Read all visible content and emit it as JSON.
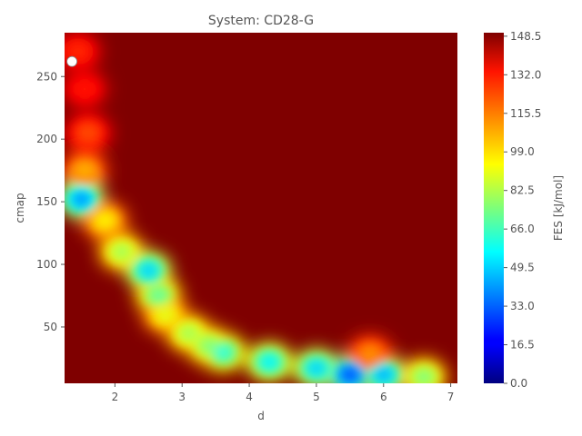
{
  "chart_data": {
    "type": "heatmap",
    "title": "System: CD28-G",
    "xlabel": "d",
    "ylabel": "cmap",
    "colorbar_label": "FES [kJ/mol]",
    "x_ticks": [
      "2",
      "3",
      "4",
      "5",
      "6",
      "7"
    ],
    "x_tick_values": [
      2,
      3,
      4,
      5,
      6,
      7
    ],
    "y_ticks": [
      "50",
      "100",
      "150",
      "200",
      "250"
    ],
    "y_tick_values": [
      50,
      100,
      150,
      200,
      250
    ],
    "colorbar_ticks": [
      "0.0",
      "16.5",
      "33.0",
      "49.5",
      "66.0",
      "82.5",
      "99.0",
      "115.5",
      "132.0",
      "148.5"
    ],
    "colorbar_tick_values": [
      0.0,
      16.5,
      33.0,
      49.5,
      66.0,
      82.5,
      99.0,
      115.5,
      132.0,
      148.5
    ],
    "xlim": [
      1.25,
      7.1
    ],
    "ylim": [
      5,
      285
    ],
    "zlim": [
      0,
      150
    ],
    "colormap": "jet",
    "background_level": 150,
    "marker": {
      "x": 1.36,
      "y": 262
    },
    "fes_path": [
      {
        "x": 1.45,
        "y": 270,
        "value": 125
      },
      {
        "x": 1.55,
        "y": 240,
        "value": 128
      },
      {
        "x": 1.6,
        "y": 205,
        "value": 120
      },
      {
        "x": 1.55,
        "y": 175,
        "value": 105
      },
      {
        "x": 1.5,
        "y": 152,
        "value": 40
      },
      {
        "x": 1.85,
        "y": 135,
        "value": 95
      },
      {
        "x": 2.1,
        "y": 110,
        "value": 80
      },
      {
        "x": 2.5,
        "y": 95,
        "value": 50
      },
      {
        "x": 2.65,
        "y": 75,
        "value": 70
      },
      {
        "x": 2.75,
        "y": 60,
        "value": 90
      },
      {
        "x": 3.1,
        "y": 45,
        "value": 80
      },
      {
        "x": 3.6,
        "y": 30,
        "value": 60
      },
      {
        "x": 4.3,
        "y": 22,
        "value": 55
      },
      {
        "x": 5.0,
        "y": 17,
        "value": 50
      },
      {
        "x": 5.5,
        "y": 12,
        "value": 30
      },
      {
        "x": 6.0,
        "y": 12,
        "value": 45
      },
      {
        "x": 6.6,
        "y": 10,
        "value": 75
      },
      {
        "x": 5.8,
        "y": 28,
        "value": 110
      },
      {
        "x": 3.4,
        "y": 35,
        "value": 75
      }
    ]
  }
}
